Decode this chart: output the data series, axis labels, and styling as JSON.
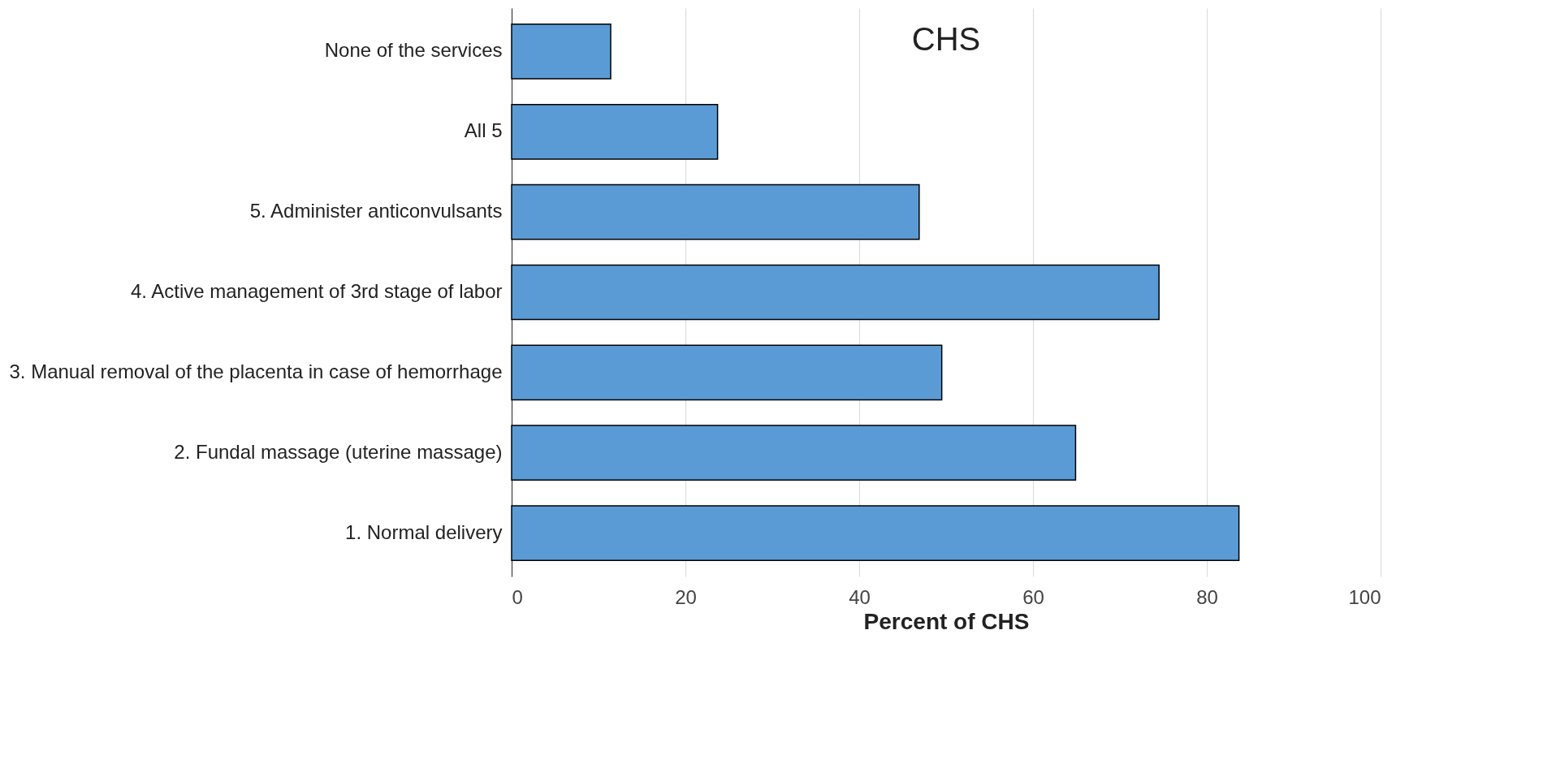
{
  "chart_data": {
    "type": "bar",
    "orientation": "horizontal",
    "title": "CHS",
    "xlabel": "Percent of CHS",
    "categories": [
      "None of the services",
      "All 5",
      "5. Administer anticonvulsants",
      "4. Active management of 3rd stage of labor",
      "3. Manual removal of the placenta in case of hemorrhage",
      "2. Fundal massage (uterine massage)",
      "1. Normal delivery"
    ],
    "values": [
      11.4,
      23.7,
      46.9,
      74.5,
      49.5,
      64.9,
      83.7
    ],
    "color": "#5b9bd5",
    "xlim": [
      0,
      100
    ],
    "xticks": [
      0,
      20,
      40,
      60,
      80,
      100
    ],
    "grid": "x"
  }
}
